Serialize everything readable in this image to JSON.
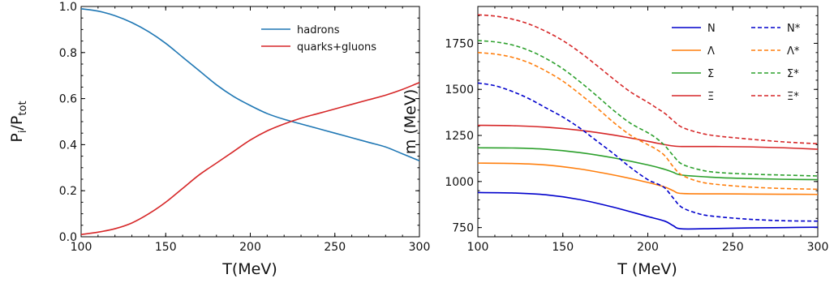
{
  "chart_data": [
    {
      "type": "line",
      "title": "",
      "xlabel": "T(MeV)",
      "ylabel": "P_i/P_tot",
      "ylabel_main": "P",
      "ylabel_sub_num": "i",
      "ylabel_sep": "/",
      "ylabel_den_main": "P",
      "ylabel_den_sub": "tot",
      "xlim": [
        100,
        300
      ],
      "ylim": [
        0.0,
        1.0
      ],
      "xticks": [
        100,
        150,
        200,
        250,
        300
      ],
      "yticks": [
        0.0,
        0.2,
        0.4,
        0.6,
        0.8,
        1.0
      ],
      "xtick_labels": [
        "100",
        "150",
        "200",
        "250",
        "300"
      ],
      "ytick_labels": [
        "0.0",
        "0.2",
        "0.4",
        "0.6",
        "0.8",
        "1.0"
      ],
      "grid": false,
      "legend_position": "top-right",
      "series": [
        {
          "name": "hadrons",
          "color": "#1f77b4",
          "dash": "solid",
          "x": [
            100,
            110,
            120,
            130,
            140,
            150,
            160,
            170,
            180,
            190,
            200,
            210,
            220,
            230,
            240,
            250,
            260,
            270,
            280,
            290,
            300
          ],
          "y": [
            0.99,
            0.98,
            0.96,
            0.93,
            0.89,
            0.84,
            0.78,
            0.72,
            0.66,
            0.61,
            0.57,
            0.535,
            0.51,
            0.49,
            0.47,
            0.45,
            0.43,
            0.41,
            0.39,
            0.36,
            0.33
          ]
        },
        {
          "name": "quarks+gluons",
          "color": "#d62728",
          "dash": "solid",
          "x": [
            100,
            110,
            120,
            130,
            140,
            150,
            160,
            170,
            180,
            190,
            200,
            210,
            220,
            230,
            240,
            250,
            260,
            270,
            280,
            290,
            300
          ],
          "y": [
            0.01,
            0.02,
            0.035,
            0.06,
            0.1,
            0.15,
            0.21,
            0.27,
            0.32,
            0.37,
            0.42,
            0.46,
            0.49,
            0.515,
            0.535,
            0.555,
            0.575,
            0.595,
            0.615,
            0.64,
            0.67
          ]
        }
      ]
    },
    {
      "type": "line",
      "title": "",
      "xlabel": "T (MeV)",
      "ylabel": "m (MeV)",
      "xlim": [
        100,
        300
      ],
      "ylim": [
        700,
        1950
      ],
      "xticks": [
        100,
        150,
        200,
        250,
        300
      ],
      "yticks": [
        750,
        1000,
        1250,
        1500,
        1750
      ],
      "xtick_labels": [
        "100",
        "150",
        "200",
        "250",
        "300"
      ],
      "ytick_labels": [
        "750",
        "1000",
        "1250",
        "1500",
        "1750"
      ],
      "grid": false,
      "legend_position": "top-right",
      "series": [
        {
          "name": "N",
          "color": "#0000cc",
          "dash": "solid",
          "x": [
            100,
            120,
            140,
            160,
            180,
            200,
            210,
            215,
            220,
            240,
            260,
            280,
            300
          ],
          "y": [
            940,
            938,
            928,
            902,
            860,
            810,
            785,
            760,
            743,
            745,
            748,
            750,
            752
          ]
        },
        {
          "name": "Λ",
          "color": "#ff7f0e",
          "dash": "solid",
          "x": [
            100,
            120,
            140,
            160,
            180,
            200,
            210,
            215,
            220,
            240,
            260,
            280,
            300
          ],
          "y": [
            1100,
            1098,
            1090,
            1068,
            1035,
            995,
            970,
            950,
            935,
            933,
            932,
            931,
            930
          ]
        },
        {
          "name": "Σ",
          "color": "#2ca02c",
          "dash": "solid",
          "x": [
            100,
            120,
            140,
            160,
            180,
            200,
            210,
            215,
            220,
            240,
            260,
            280,
            300
          ],
          "y": [
            1183,
            1182,
            1175,
            1157,
            1128,
            1090,
            1066,
            1050,
            1035,
            1022,
            1016,
            1012,
            1010
          ]
        },
        {
          "name": "Ξ",
          "color": "#d62728",
          "dash": "solid",
          "x": [
            100,
            120,
            140,
            160,
            180,
            200,
            210,
            215,
            220,
            240,
            260,
            280,
            300
          ],
          "y": [
            1305,
            1303,
            1295,
            1278,
            1252,
            1218,
            1200,
            1193,
            1190,
            1190,
            1188,
            1183,
            1175
          ]
        },
        {
          "name": "N*",
          "color": "#0000cc",
          "dash": "dashed",
          "x": [
            100,
            110,
            120,
            130,
            140,
            150,
            160,
            170,
            180,
            190,
            200,
            205,
            210,
            215,
            220,
            230,
            240,
            260,
            280,
            300
          ],
          "y": [
            1535,
            1520,
            1490,
            1450,
            1400,
            1350,
            1290,
            1220,
            1150,
            1075,
            1010,
            990,
            965,
            910,
            860,
            825,
            810,
            795,
            787,
            785
          ]
        },
        {
          "name": "Λ*",
          "color": "#ff7f0e",
          "dash": "dashed",
          "x": [
            100,
            110,
            120,
            130,
            140,
            150,
            160,
            170,
            180,
            190,
            200,
            205,
            210,
            215,
            220,
            230,
            240,
            260,
            280,
            300
          ],
          "y": [
            1700,
            1692,
            1675,
            1645,
            1600,
            1545,
            1475,
            1400,
            1320,
            1250,
            1200,
            1175,
            1140,
            1080,
            1035,
            1000,
            985,
            970,
            962,
            958
          ]
        },
        {
          "name": "Σ*",
          "color": "#2ca02c",
          "dash": "dashed",
          "x": [
            100,
            110,
            120,
            130,
            140,
            150,
            160,
            170,
            180,
            190,
            200,
            205,
            210,
            215,
            220,
            230,
            240,
            260,
            280,
            300
          ],
          "y": [
            1765,
            1758,
            1742,
            1712,
            1668,
            1612,
            1542,
            1465,
            1385,
            1315,
            1265,
            1235,
            1195,
            1140,
            1095,
            1065,
            1050,
            1040,
            1035,
            1030
          ]
        },
        {
          "name": "Ξ*",
          "color": "#d62728",
          "dash": "dashed",
          "x": [
            100,
            110,
            120,
            130,
            140,
            150,
            160,
            170,
            180,
            190,
            200,
            205,
            210,
            215,
            220,
            230,
            240,
            260,
            280,
            300
          ],
          "y": [
            1905,
            1898,
            1882,
            1855,
            1815,
            1765,
            1702,
            1630,
            1555,
            1485,
            1430,
            1400,
            1370,
            1330,
            1295,
            1265,
            1248,
            1230,
            1215,
            1205
          ]
        }
      ]
    }
  ]
}
